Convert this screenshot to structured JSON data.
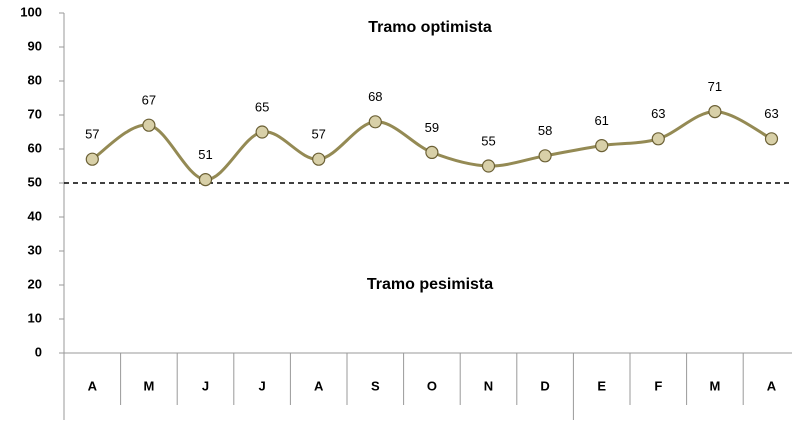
{
  "chart_data": {
    "type": "line",
    "annotations": [
      "Tramo optimista",
      "Tramo pesimista"
    ],
    "categories": [
      "A",
      "M",
      "J",
      "J",
      "A",
      "S",
      "O",
      "N",
      "D",
      "E",
      "F",
      "M",
      "A"
    ],
    "series": [
      {
        "color": "#948a54",
        "values": [
          57,
          67,
          51,
          65,
          57,
          68,
          59,
          55,
          58,
          61,
          63,
          71,
          63
        ]
      }
    ],
    "reference_line": 50,
    "ylim": [
      0,
      100
    ],
    "yticks": [
      0,
      10,
      20,
      30,
      40,
      50,
      60,
      70,
      80,
      90,
      100
    ]
  }
}
